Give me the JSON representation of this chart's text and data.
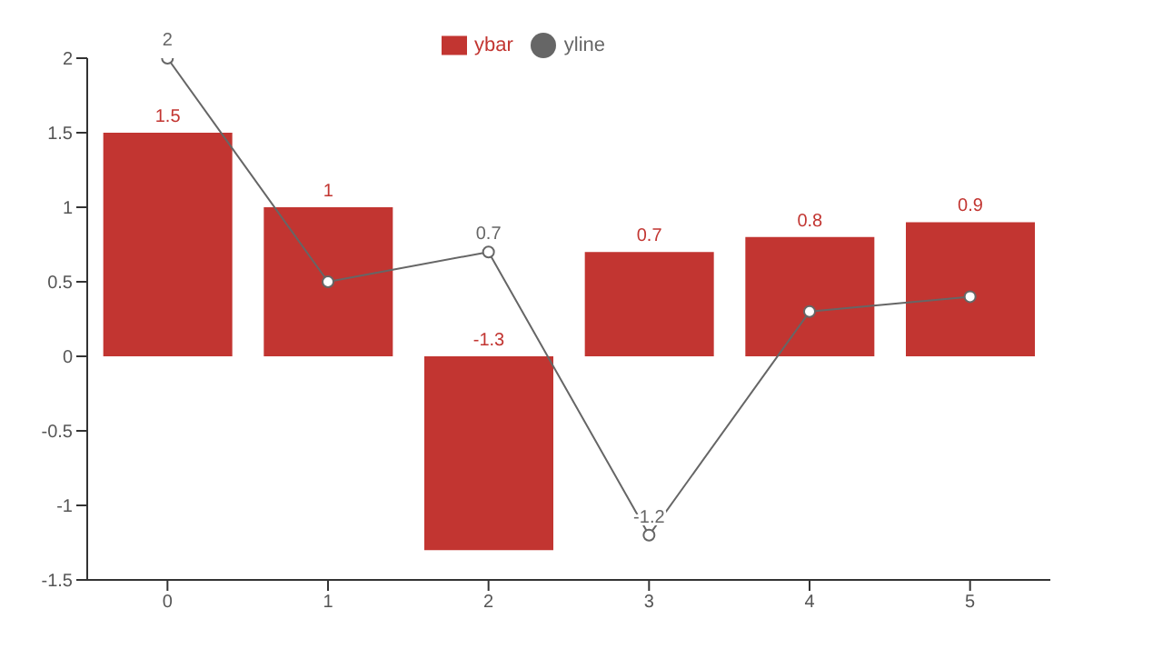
{
  "chart_data": {
    "type": "bar",
    "categories": [
      "0",
      "1",
      "2",
      "3",
      "4",
      "5"
    ],
    "series": [
      {
        "name": "ybar",
        "color": "#c23531",
        "values": [
          1.5,
          1,
          -1.3,
          0.7,
          0.8,
          0.9
        ],
        "value_labels": [
          "1.5",
          "1",
          "-1.3",
          "0.7",
          "0.8",
          "0.9"
        ]
      },
      {
        "name": "yline",
        "type": "line",
        "color": "#666666",
        "values": [
          2,
          0.5,
          0.7,
          -1.2,
          0.3,
          0.4
        ],
        "value_labels": [
          "2",
          null,
          "0.7",
          "-1.2",
          null,
          null
        ]
      }
    ],
    "ylim": [
      -1.5,
      2
    ],
    "yticks": [
      -1.5,
      -1,
      -0.5,
      0,
      0.5,
      1,
      1.5,
      2
    ],
    "legend": "top",
    "marker": "circle",
    "line_style": "solid"
  }
}
